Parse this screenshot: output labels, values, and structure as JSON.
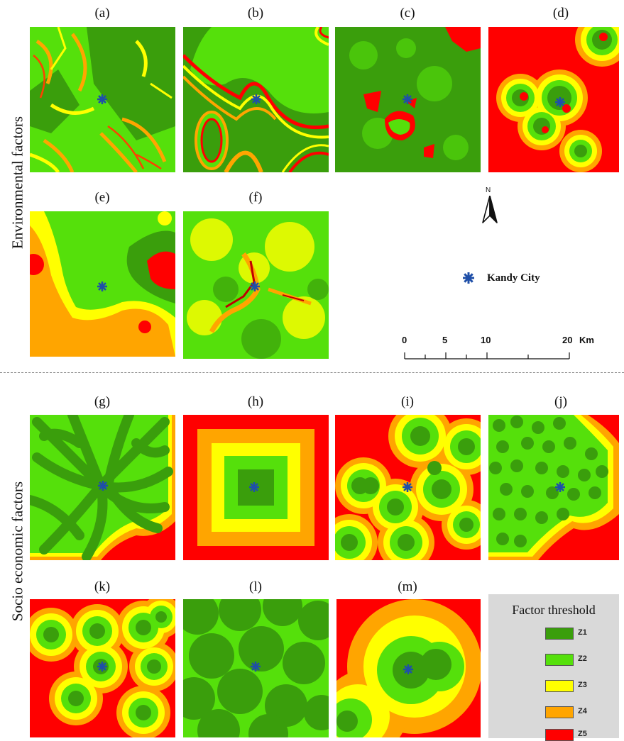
{
  "panels": [
    {
      "label": "(a)"
    },
    {
      "label": "(b)"
    },
    {
      "label": "(c)"
    },
    {
      "label": "(d)"
    },
    {
      "label": "(e)"
    },
    {
      "label": "(f)"
    },
    {
      "label": "(g)"
    },
    {
      "label": "(h)"
    },
    {
      "label": "(i)"
    },
    {
      "label": "(j)"
    },
    {
      "label": "(k)"
    },
    {
      "label": "(l)"
    },
    {
      "label": "(m)"
    }
  ],
  "groups": {
    "environmental": "Environmental factors",
    "socio_economic": "Socio economic factors"
  },
  "marker": {
    "label": "Kandy City",
    "color": "#1f4fa8"
  },
  "north_arrow": {
    "label": "N"
  },
  "scale_bar": {
    "ticks": [
      "0",
      "5",
      "10",
      "20"
    ],
    "unit": "Km"
  },
  "legend": {
    "title": "Factor threshold",
    "items": [
      {
        "label": "Z1",
        "color": "#3a9e0c"
      },
      {
        "label": "Z2",
        "color": "#55e00b"
      },
      {
        "label": "Z3",
        "color": "#ffff00"
      },
      {
        "label": "Z4",
        "color": "#ffa500"
      },
      {
        "label": "Z5",
        "color": "#ff0000"
      }
    ]
  }
}
